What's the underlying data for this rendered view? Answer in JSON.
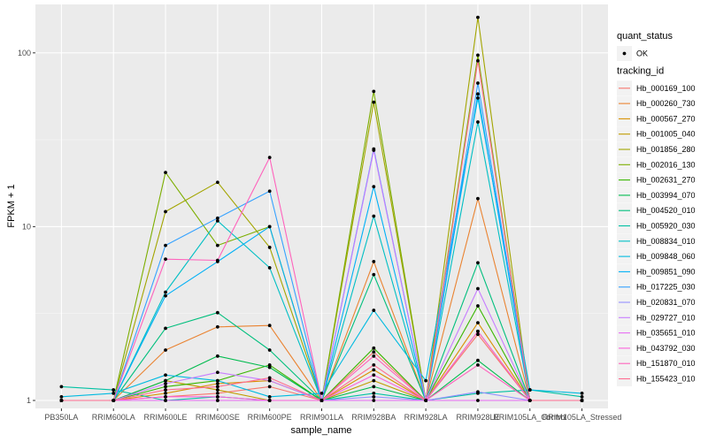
{
  "chart_data": {
    "type": "line",
    "xlabel": "sample_name",
    "ylabel": "FPKM + 1",
    "yscale": "log",
    "ylim": [
      0.9,
      190
    ],
    "yticks": [
      1,
      10,
      100
    ],
    "ytick_labels": [
      "1",
      "10",
      "100"
    ],
    "grid": true,
    "legend_position": "right",
    "categories": [
      "PB350LA",
      "RRIM600LA",
      "RRIM600LE",
      "RRIM600SE",
      "RRIM600PE",
      "RRIM901LA",
      "RRIM928BA",
      "RRIM928LA",
      "RRIM928LE",
      "RRIM105LA_Control",
      "RRIM105LA_Stressed"
    ],
    "legend_groups": [
      {
        "title": "quant_status",
        "entries": [
          {
            "label": "OK",
            "symbol": "point"
          }
        ]
      },
      {
        "title": "tracking_id",
        "entries": "series"
      }
    ],
    "series": [
      {
        "name": "Hb_000169_100",
        "color": "#F8766D",
        "values": [
          1.0,
          1.0,
          1.05,
          1.1,
          1.2,
          1.0,
          1.9,
          1.0,
          2.4,
          1.0,
          1.0
        ]
      },
      {
        "name": "Hb_000260_730",
        "color": "#EA8331",
        "values": [
          1.0,
          1.0,
          1.95,
          2.65,
          2.7,
          1.0,
          6.3,
          1.0,
          14.5,
          1.0,
          1.0
        ]
      },
      {
        "name": "Hb_000567_270",
        "color": "#D89000",
        "values": [
          1.0,
          1.0,
          1.1,
          1.25,
          1.3,
          1.0,
          1.5,
          1.0,
          2.8,
          1.0,
          1.0
        ]
      },
      {
        "name": "Hb_001005_040",
        "color": "#C09B00",
        "values": [
          1.0,
          1.0,
          1.3,
          1.15,
          1.0,
          1.0,
          1.3,
          1.0,
          2.5,
          1.0,
          1.0
        ]
      },
      {
        "name": "Hb_001856_280",
        "color": "#A3A500",
        "values": [
          1.0,
          1.0,
          12.2,
          18.0,
          7.6,
          1.0,
          52.0,
          1.0,
          160.0,
          1.0,
          1.0
        ]
      },
      {
        "name": "Hb_002016_130",
        "color": "#7CAE00",
        "values": [
          1.0,
          1.0,
          20.5,
          7.8,
          10.0,
          1.0,
          60.0,
          1.0,
          97.0,
          1.0,
          1.0
        ]
      },
      {
        "name": "Hb_002631_270",
        "color": "#39B600",
        "values": [
          1.0,
          1.0,
          1.2,
          1.3,
          1.6,
          1.0,
          2.0,
          1.0,
          3.5,
          1.0,
          1.0
        ]
      },
      {
        "name": "Hb_003994_070",
        "color": "#00BB4E",
        "values": [
          1.0,
          1.0,
          1.3,
          1.8,
          1.55,
          1.0,
          1.2,
          1.0,
          1.7,
          1.0,
          1.0
        ]
      },
      {
        "name": "Hb_004520_010",
        "color": "#00BF7D",
        "values": [
          1.0,
          1.0,
          2.6,
          3.2,
          1.95,
          1.0,
          5.3,
          1.0,
          6.2,
          1.0,
          1.0
        ]
      },
      {
        "name": "Hb_005920_030",
        "color": "#00C1A3",
        "values": [
          1.2,
          1.15,
          1.0,
          1.05,
          1.0,
          1.0,
          1.1,
          1.0,
          1.1,
          1.15,
          1.05
        ]
      },
      {
        "name": "Hb_008834_010",
        "color": "#00BFC4",
        "values": [
          1.0,
          1.0,
          4.2,
          10.8,
          5.8,
          1.0,
          11.5,
          1.0,
          40.0,
          1.0,
          1.0
        ]
      },
      {
        "name": "Hb_009848_060",
        "color": "#00BAE0",
        "values": [
          1.05,
          1.1,
          1.4,
          1.3,
          1.05,
          1.1,
          3.3,
          1.3,
          55.0,
          1.15,
          1.1
        ]
      },
      {
        "name": "Hb_009851_090",
        "color": "#00B0F6",
        "values": [
          1.0,
          1.0,
          4.0,
          6.3,
          10.0,
          1.0,
          17.0,
          1.0,
          58.0,
          1.0,
          1.0
        ]
      },
      {
        "name": "Hb_017225_030",
        "color": "#35A2FF",
        "values": [
          1.0,
          1.0,
          7.8,
          11.2,
          16.0,
          1.0,
          28.0,
          1.0,
          67.0,
          1.0,
          1.0
        ]
      },
      {
        "name": "Hb_020831_070",
        "color": "#9590FF",
        "values": [
          1.0,
          1.0,
          1.0,
          1.0,
          1.0,
          1.0,
          1.05,
          1.0,
          1.12,
          1.0,
          1.0
        ]
      },
      {
        "name": "Hb_029727_010",
        "color": "#C77CFF",
        "values": [
          1.0,
          1.0,
          1.25,
          1.45,
          1.3,
          1.0,
          27.5,
          1.0,
          4.4,
          1.0,
          1.0
        ]
      },
      {
        "name": "Hb_035651_010",
        "color": "#E76BF3",
        "values": [
          1.0,
          1.0,
          1.0,
          1.0,
          1.0,
          1.0,
          1.0,
          1.0,
          1.0,
          1.0,
          1.0
        ]
      },
      {
        "name": "Hb_043792_030",
        "color": "#FA62DB",
        "values": [
          1.0,
          1.0,
          1.05,
          1.05,
          1.0,
          1.0,
          1.4,
          1.0,
          2.5,
          1.0,
          1.0
        ]
      },
      {
        "name": "Hb_151870_010",
        "color": "#FF62BC",
        "values": [
          1.0,
          1.0,
          6.5,
          6.4,
          25.0,
          1.0,
          1.8,
          1.0,
          1.6,
          1.0,
          1.0
        ]
      },
      {
        "name": "Hb_155423_010",
        "color": "#FF6C91",
        "values": [
          1.0,
          1.0,
          1.15,
          1.2,
          1.35,
          1.0,
          1.6,
          1.0,
          90.0,
          1.0,
          1.0
        ]
      }
    ]
  }
}
